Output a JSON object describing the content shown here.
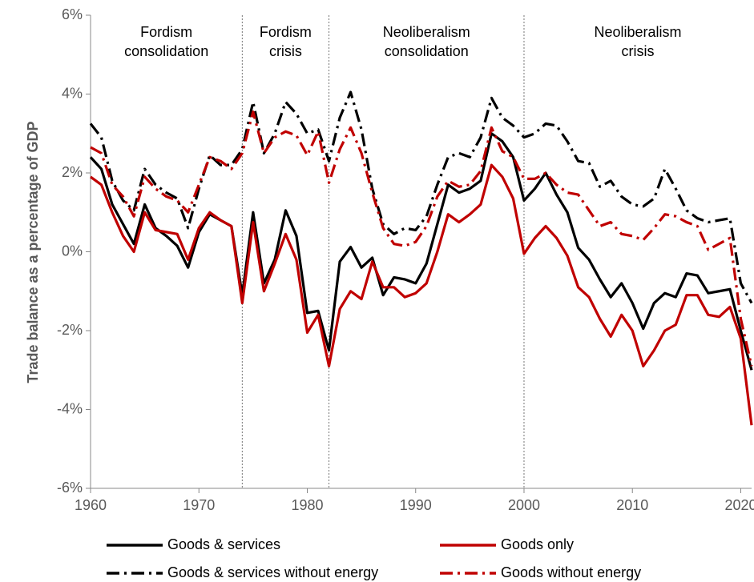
{
  "chart_data": {
    "type": "line",
    "y_label": "Trade balance as a percentage of GDP",
    "x": [
      1960,
      1961,
      1962,
      1963,
      1964,
      1965,
      1966,
      1967,
      1968,
      1969,
      1970,
      1971,
      1972,
      1973,
      1974,
      1975,
      1976,
      1977,
      1978,
      1979,
      1980,
      1981,
      1982,
      1983,
      1984,
      1985,
      1986,
      1987,
      1988,
      1989,
      1990,
      1991,
      1992,
      1993,
      1994,
      1995,
      1996,
      1997,
      1998,
      1999,
      2000,
      2001,
      2002,
      2003,
      2004,
      2005,
      2006,
      2007,
      2008,
      2009,
      2010,
      2011,
      2012,
      2013,
      2014,
      2015,
      2016,
      2017,
      2018,
      2019,
      2020,
      2021
    ],
    "xlim": [
      1960,
      2021
    ],
    "xticks": [
      1960,
      1970,
      1980,
      1990,
      2000,
      2010,
      2020
    ],
    "ylim": [
      -6,
      6
    ],
    "yticks": [
      {
        "value": -6,
        "label": "-6%"
      },
      {
        "value": -4,
        "label": "-4%"
      },
      {
        "value": -2,
        "label": "-2%"
      },
      {
        "value": 0,
        "label": "0%"
      },
      {
        "value": 2,
        "label": "2%"
      },
      {
        "value": 4,
        "label": "4%"
      },
      {
        "value": 6,
        "label": "6%"
      }
    ],
    "grid": false,
    "legend": "bottom",
    "periods": [
      {
        "lines": [
          "Fordism",
          "consolidation"
        ],
        "start": 1960,
        "end": 1974
      },
      {
        "lines": [
          "Fordism",
          "crisis"
        ],
        "start": 1974,
        "end": 1982
      },
      {
        "lines": [
          "Neoliberalism",
          "consolidation"
        ],
        "start": 1982,
        "end": 2000
      },
      {
        "lines": [
          "Neoliberalism",
          "crisis"
        ],
        "start": 2000,
        "end": 2021
      }
    ],
    "series": [
      {
        "name": "Goods & services",
        "color": "#000000",
        "dash": "solid",
        "values": [
          2.4,
          2.1,
          1.2,
          0.7,
          0.2,
          1.2,
          0.6,
          0.4,
          0.15,
          -0.4,
          0.5,
          0.95,
          0.8,
          0.65,
          -1.1,
          1.0,
          -0.8,
          -0.2,
          1.05,
          0.4,
          -1.55,
          -1.5,
          -2.5,
          -0.25,
          0.12,
          -0.4,
          -0.15,
          -1.1,
          -0.65,
          -0.7,
          -0.8,
          -0.3,
          0.7,
          1.7,
          1.5,
          1.6,
          1.8,
          3.0,
          2.8,
          2.4,
          1.3,
          1.6,
          2.0,
          1.45,
          1.0,
          0.1,
          -0.2,
          -0.7,
          -1.15,
          -0.8,
          -1.3,
          -1.95,
          -1.3,
          -1.05,
          -1.15,
          -0.55,
          -0.6,
          -1.05,
          -1.0,
          -0.95,
          -2.0,
          -3.0
        ]
      },
      {
        "name": "Goods only",
        "color": "#c00000",
        "dash": "solid",
        "values": [
          1.9,
          1.7,
          1.0,
          0.4,
          0.0,
          1.0,
          0.55,
          0.5,
          0.45,
          -0.2,
          0.6,
          1.0,
          0.8,
          0.65,
          -1.3,
          0.75,
          -1.0,
          -0.3,
          0.45,
          -0.2,
          -2.05,
          -1.6,
          -2.9,
          -1.45,
          -1.0,
          -1.2,
          -0.25,
          -0.9,
          -0.9,
          -1.15,
          -1.05,
          -0.8,
          0.0,
          0.95,
          0.75,
          0.95,
          1.2,
          2.2,
          1.9,
          1.35,
          -0.05,
          0.35,
          0.65,
          0.35,
          -0.1,
          -0.9,
          -1.15,
          -1.7,
          -2.15,
          -1.6,
          -2.0,
          -2.9,
          -2.5,
          -2.0,
          -1.85,
          -1.1,
          -1.1,
          -1.6,
          -1.65,
          -1.4,
          -2.2,
          -4.4
        ]
      },
      {
        "name": "Goods & services without energy",
        "color": "#000000",
        "dash": "dashdot",
        "values": [
          3.25,
          2.9,
          1.8,
          1.3,
          1.05,
          2.1,
          1.7,
          1.5,
          1.35,
          0.6,
          1.6,
          2.45,
          2.2,
          2.2,
          2.6,
          3.8,
          2.5,
          3.0,
          3.8,
          3.5,
          3.0,
          3.1,
          2.3,
          3.4,
          4.05,
          3.1,
          1.6,
          0.7,
          0.45,
          0.6,
          0.55,
          0.9,
          1.7,
          2.4,
          2.5,
          2.4,
          2.9,
          3.9,
          3.4,
          3.2,
          2.9,
          3.0,
          3.25,
          3.2,
          2.8,
          2.3,
          2.25,
          1.65,
          1.8,
          1.4,
          1.2,
          1.15,
          1.35,
          2.1,
          1.6,
          1.05,
          0.85,
          0.75,
          0.8,
          0.85,
          -0.8,
          -1.3
        ]
      },
      {
        "name": "Goods without energy",
        "color": "#c00000",
        "dash": "dashdot",
        "values": [
          2.65,
          2.5,
          1.7,
          1.4,
          0.9,
          1.9,
          1.6,
          1.4,
          1.3,
          1.0,
          1.7,
          2.4,
          2.3,
          2.1,
          2.5,
          3.55,
          2.5,
          2.9,
          3.05,
          2.95,
          2.45,
          3.05,
          1.75,
          2.6,
          3.15,
          2.5,
          1.5,
          0.6,
          0.2,
          0.15,
          0.25,
          0.65,
          1.4,
          1.8,
          1.65,
          1.7,
          2.05,
          3.15,
          2.55,
          2.4,
          1.85,
          1.85,
          2.0,
          1.7,
          1.5,
          1.45,
          1.05,
          0.65,
          0.75,
          0.45,
          0.4,
          0.3,
          0.6,
          0.95,
          0.9,
          0.75,
          0.65,
          0.05,
          0.2,
          0.35,
          -1.7,
          -2.9
        ]
      }
    ]
  }
}
